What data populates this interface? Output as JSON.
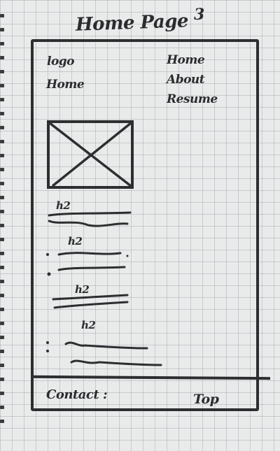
{
  "header": {
    "title": "Home Page",
    "page_number": "3"
  },
  "logo_text": "logo",
  "left_nav_text": "Home",
  "nav": {
    "items": [
      "Home",
      "About",
      "Resume"
    ]
  },
  "image_placeholder_icon": "crossed-box-icon",
  "sections": [
    {
      "heading": "h2"
    },
    {
      "heading": "h2"
    },
    {
      "heading": "h2"
    },
    {
      "heading": "h2"
    }
  ],
  "footer": {
    "contact_label": "Contact :",
    "top_link": "Top"
  }
}
